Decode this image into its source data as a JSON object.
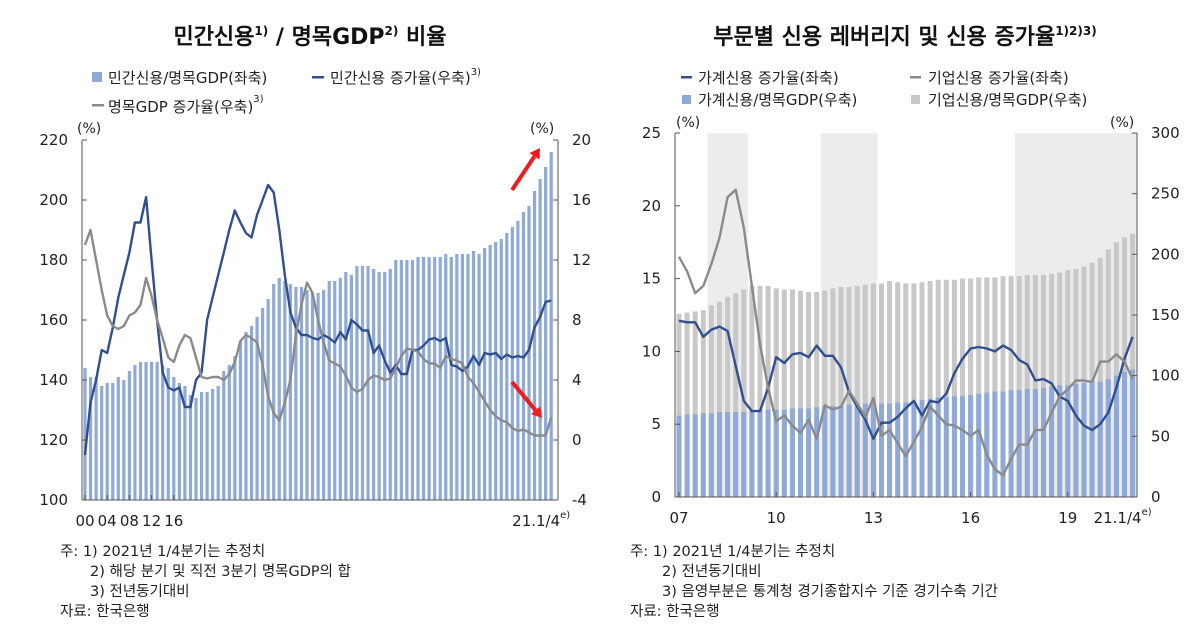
{
  "chart_data": [
    {
      "type": "bar+line",
      "title": "민간신용",
      "title_sup1": "1)",
      "title_mid": " / 명목GDP",
      "title_sup2": "2)",
      "title_end": "  비율",
      "legend": [
        {
          "label": "민간신용/명목GDP(좌축)",
          "sup": "",
          "color": "#8fa9d9",
          "kind": "bar"
        },
        {
          "label": "민간신용 증가율(우축)",
          "sup": "3)",
          "color": "#2f4f8f",
          "kind": "line"
        },
        {
          "label": "명목GDP 증가율(우축)",
          "sup": "3)",
          "color": "#8a8a8a",
          "kind": "line"
        }
      ],
      "legend_placement": "top",
      "left_unit": "(%)",
      "right_unit": "(%)",
      "ylim_left": [
        100,
        220
      ],
      "yticks_left": [
        "100",
        "120",
        "140",
        "160",
        "180",
        "200",
        "220"
      ],
      "ylim_right": [
        -4,
        20
      ],
      "yticks_right": [
        "-4",
        "0",
        "4",
        "8",
        "12",
        "16",
        "20"
      ],
      "xticks": [
        "00",
        "04",
        "08",
        "12",
        "16",
        "21.1/4"
      ],
      "xtick_last_sup": "e)",
      "x_start": "2000Q1",
      "x_end": "2021Q1",
      "frequency": "quarterly",
      "grid": false,
      "series": [
        {
          "name": "민간신용/명목GDP(좌축)",
          "axis": "left",
          "type": "bar",
          "values": [
            144,
            141,
            141,
            138,
            139,
            139,
            141,
            140,
            143,
            145,
            146,
            146,
            146,
            146,
            145,
            144,
            141,
            139,
            138,
            135,
            134,
            136,
            136,
            137,
            138,
            143,
            145,
            148,
            153,
            156,
            158,
            161,
            164,
            167,
            172,
            174,
            173,
            172,
            171,
            171,
            170,
            169,
            169,
            170,
            173,
            173,
            174,
            176,
            175,
            178,
            178,
            178,
            177,
            176,
            176,
            177,
            180,
            180,
            180,
            180,
            181,
            181,
            181,
            181,
            181,
            182,
            181,
            182,
            182,
            182,
            183,
            182,
            184,
            185,
            186,
            187,
            189,
            191,
            193,
            196,
            198,
            203,
            207,
            211,
            216
          ]
        },
        {
          "name": "민간신용 증가율(우축)",
          "axis": "right",
          "type": "line",
          "values": [
            -1,
            2.5,
            4,
            6,
            5.8,
            7.5,
            9.5,
            11,
            12.5,
            14.5,
            14.5,
            16.2,
            12,
            8,
            4.5,
            3.5,
            3.3,
            3.5,
            2.2,
            2.2,
            4,
            4.5,
            8,
            9.5,
            11,
            12.5,
            14,
            15.3,
            14.5,
            13.8,
            13.5,
            15,
            16,
            17,
            16.5,
            14,
            11,
            8.5,
            7.5,
            7,
            7,
            6.8,
            6.7,
            7,
            6.8,
            6.5,
            7.2,
            6.7,
            8,
            7.7,
            7.3,
            7.3,
            5.8,
            6.3,
            5.3,
            4.5,
            5,
            4.4,
            4.4,
            6,
            6,
            6.3,
            6.7,
            6.8,
            6.6,
            6.8,
            5,
            4.9,
            4.6,
            4.9,
            5.6,
            5,
            5.8,
            5.7,
            5.8,
            5.4,
            5.7,
            5.5,
            5.6,
            5.5,
            6,
            7.5,
            8.2,
            9.2,
            9.3
          ]
        },
        {
          "name": "명목GDP 증가율(우축)",
          "axis": "right",
          "type": "line",
          "values": [
            13,
            14,
            12,
            10,
            8.3,
            7.6,
            7.4,
            7.6,
            8.3,
            8.5,
            9,
            10.8,
            9.6,
            8,
            6.8,
            5.5,
            5.2,
            6.3,
            7,
            6.8,
            5.5,
            4.2,
            4.1,
            4.2,
            4.2,
            4,
            4.4,
            5.2,
            6.6,
            7,
            6.8,
            6.5,
            5,
            2.9,
            1.8,
            1.3,
            2.5,
            4,
            7,
            9,
            10.5,
            9.8,
            8,
            6.5,
            5.3,
            5.1,
            4.9,
            4.3,
            3.5,
            3.2,
            3.4,
            4,
            4.3,
            4.2,
            4,
            4.1,
            4.8,
            5.6,
            6.1,
            6,
            5.9,
            5.4,
            5.1,
            5.1,
            4.8,
            5.6,
            5.4,
            5.3,
            5.1,
            4.2,
            3.8,
            3.2,
            2.6,
            2,
            1.6,
            1.3,
            1.2,
            0.8,
            0.6,
            0.7,
            0.5,
            0.3,
            0.3,
            0.3,
            1.5
          ]
        }
      ],
      "annotations": [
        {
          "kind": "red-arrow-up",
          "color": "#ee1c1c"
        },
        {
          "kind": "red-arrow-down",
          "color": "#ee1c1c"
        }
      ],
      "notes": [
        "주: 1) 2021년 1/4분기는 추정치",
        "2) 해당 분기 및 직전 3분기 명목GDP의 합",
        "3) 전년동기대비",
        "자료: 한국은행"
      ]
    },
    {
      "type": "bar+line",
      "title": "부문별 신용 레버리지 및 신용 증가율",
      "title_sup": "1)2)3)",
      "legend": [
        {
          "label": "가계신용 증가율(좌축)",
          "color": "#2f4f8f",
          "kind": "line"
        },
        {
          "label": "기업신용 증가율(좌축)",
          "color": "#8a8a8a",
          "kind": "line"
        },
        {
          "label": "가계신용/명목GDP(우축)",
          "color": "#8fa9d9",
          "kind": "bar"
        },
        {
          "label": "기업신용/명목GDP(우축)",
          "color": "#c8c8c8",
          "kind": "bar"
        }
      ],
      "legend_placement": "top",
      "left_unit": "(%)",
      "right_unit": "(%)",
      "ylim_left": [
        0,
        25
      ],
      "yticks_left": [
        "0",
        "5",
        "10",
        "15",
        "20",
        "25"
      ],
      "ylim_right": [
        0,
        300
      ],
      "yticks_right": [
        "0",
        "50",
        "100",
        "150",
        "200",
        "250",
        "300"
      ],
      "xticks": [
        "07",
        "10",
        "13",
        "16",
        "19",
        "21.1/4"
      ],
      "xtick_last_sup": "e)",
      "x_start": "2007Q1",
      "x_end": "2021Q1",
      "frequency": "quarterly",
      "grid": false,
      "shaded_periods": [
        [
          "2008Q1",
          "2009Q1"
        ],
        [
          "2011Q3",
          "2013Q1"
        ],
        [
          "2017Q3",
          "2021Q1"
        ]
      ],
      "shade_color": "#ececec",
      "series": [
        {
          "name": "기업신용/명목GDP(우축)",
          "axis": "right",
          "type": "bar",
          "values": [
            151,
            152,
            153,
            154,
            158,
            161,
            165,
            168,
            171,
            174,
            174,
            174,
            172,
            171,
            171,
            170,
            169,
            169,
            170,
            172,
            173,
            173,
            174,
            175,
            176,
            176,
            178,
            177,
            176,
            176,
            177,
            178,
            179,
            179,
            179,
            180,
            180,
            181,
            181,
            181,
            182,
            182,
            182,
            183,
            183,
            183,
            184,
            185,
            187,
            188,
            190,
            193,
            197,
            204,
            210,
            214,
            217
          ]
        },
        {
          "name": "가계신용/명목GDP(우축)",
          "axis": "right",
          "type": "bar",
          "values": [
            67,
            68,
            68,
            69,
            69,
            70,
            70,
            70,
            70,
            71,
            72,
            72,
            72,
            72,
            73,
            73,
            73,
            74,
            75,
            75,
            75,
            76,
            77,
            77,
            77,
            77,
            77,
            78,
            78,
            79,
            80,
            81,
            82,
            82,
            83,
            83,
            84,
            85,
            86,
            87,
            87,
            88,
            88,
            89,
            89,
            90,
            91,
            92,
            92,
            93,
            94,
            95,
            95,
            97,
            100,
            103,
            105
          ]
        },
        {
          "name": "가계신용 증가율(좌축)",
          "axis": "left",
          "type": "line",
          "values": [
            12.1,
            12,
            12,
            11,
            11.5,
            11.7,
            11.4,
            9,
            6.6,
            5.9,
            5.9,
            7.5,
            9.6,
            9.2,
            9.8,
            9.9,
            9.6,
            10.4,
            9.7,
            9.7,
            8.9,
            7.2,
            6.2,
            5.3,
            4,
            5.1,
            5.1,
            5.5,
            6.1,
            6.6,
            5.6,
            6.6,
            6.5,
            7.1,
            8.5,
            9.5,
            10.2,
            10.3,
            10.2,
            10,
            10.4,
            10.1,
            9.4,
            9.1,
            8,
            8.1,
            7.8,
            6.9,
            6.6,
            5.6,
            4.9,
            4.6,
            5,
            5.8,
            7.5,
            9.5,
            11
          ]
        },
        {
          "name": "기업신용 증가율(좌축)",
          "axis": "left",
          "type": "line",
          "values": [
            16.5,
            15.5,
            14,
            14.5,
            16,
            17.8,
            20.6,
            21.1,
            18.5,
            14.5,
            10.5,
            7.5,
            5.2,
            5.6,
            4.9,
            4.4,
            5.3,
            4,
            6.3,
            6,
            6.2,
            7.3,
            6.4,
            5.5,
            6.8,
            4.2,
            4.6,
            3.7,
            2.8,
            3.8,
            4.8,
            6.2,
            5.6,
            5,
            4.9,
            4.6,
            4.2,
            4.6,
            2.9,
            1.9,
            1.5,
            2.6,
            3.6,
            3.6,
            4.6,
            4.6,
            5.8,
            6.9,
            7.4,
            8,
            8,
            7.9,
            9.3,
            9.3,
            9.8,
            9.3,
            8.1
          ]
        }
      ],
      "notes": [
        "주: 1) 2021년 1/4분기는 추정치",
        "2) 전년동기대비",
        "3) 음영부분은 통계청 경기종합지수 기준 경기수축 기간",
        "자료: 한국은행"
      ]
    }
  ]
}
